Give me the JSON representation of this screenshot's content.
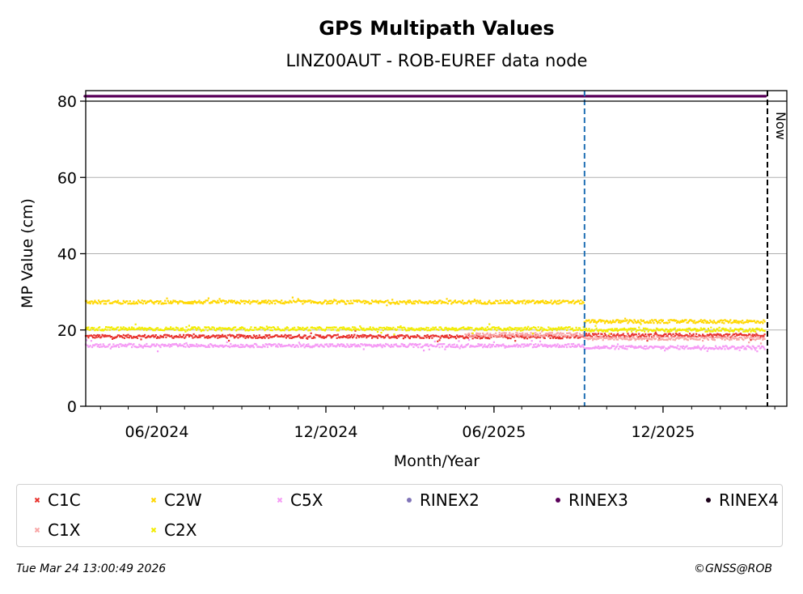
{
  "chart_data": {
    "type": "scatter",
    "title": "GPS Multipath Values",
    "subtitle": "LINZ00AUT - ROB-EUREF data node",
    "xlabel": "Month/Year",
    "ylabel": "MP Value (cm)",
    "xlim": [
      "2024-03-16",
      "2026-04-14"
    ],
    "ylim": [
      0,
      80
    ],
    "yticks": [
      0,
      20,
      40,
      60,
      80
    ],
    "xticks": [
      {
        "date": "2024-06-01",
        "label": "06/2024"
      },
      {
        "date": "2024-12-01",
        "label": "12/2024"
      },
      {
        "date": "2025-06-01",
        "label": "06/2025"
      },
      {
        "date": "2025-12-01",
        "label": "12/2025"
      }
    ],
    "grid": "horizontal",
    "legend_position": "bottom",
    "vlines": [
      {
        "date": "2025-09-07",
        "color": "#1f6fb4",
        "style": "dashed"
      },
      {
        "date": "2026-03-24",
        "color": "#000000",
        "style": "dashed",
        "label": "Now"
      }
    ],
    "series": [
      {
        "name": "C1C",
        "color": "#e8322c",
        "marker": "x",
        "segments": [
          {
            "start": "2024-03-16",
            "end": "2025-04-20",
            "value": 18.3
          },
          {
            "start": "2025-04-21",
            "end": "2025-09-06",
            "value": 18.2
          },
          {
            "start": "2025-09-07",
            "end": "2026-03-21",
            "value": 18.6
          }
        ]
      },
      {
        "name": "C1X",
        "color": "#f8a6a6",
        "marker": "x",
        "segments": [
          {
            "start": "2025-05-01",
            "end": "2025-09-06",
            "value": 18.8
          },
          {
            "start": "2025-09-07",
            "end": "2026-03-21",
            "value": 17.8
          }
        ]
      },
      {
        "name": "C2W",
        "color": "#ffd700",
        "marker": "x",
        "segments": [
          {
            "start": "2024-03-16",
            "end": "2025-09-06",
            "value": 27.3
          },
          {
            "start": "2025-09-07",
            "end": "2026-03-21",
            "value": 22.2
          }
        ]
      },
      {
        "name": "C2X",
        "color": "#f2ec00",
        "marker": "x",
        "segments": [
          {
            "start": "2024-03-16",
            "end": "2025-09-06",
            "value": 20.3
          },
          {
            "start": "2025-09-07",
            "end": "2026-03-21",
            "value": 20.0
          }
        ]
      },
      {
        "name": "C5X",
        "color": "#f59af5",
        "marker": "x",
        "segments": [
          {
            "start": "2024-03-16",
            "end": "2025-09-06",
            "value": 15.9
          },
          {
            "start": "2025-09-07",
            "end": "2026-03-21",
            "value": 15.4
          }
        ]
      },
      {
        "name": "RINEX2",
        "color": "#8074b8",
        "marker": "dot",
        "segments": []
      },
      {
        "name": "RINEX3",
        "color": "#5a005a",
        "marker": "dot",
        "segments": [
          {
            "start": "2024-03-16",
            "end": "2026-03-21",
            "value": 81.3
          }
        ]
      },
      {
        "name": "RINEX4",
        "color": "#1a0018",
        "marker": "dot",
        "segments": []
      }
    ]
  },
  "footer": {
    "timestamp": "Tue Mar 24 13:00:49 2026",
    "copyright": "©GNSS@ROB"
  }
}
